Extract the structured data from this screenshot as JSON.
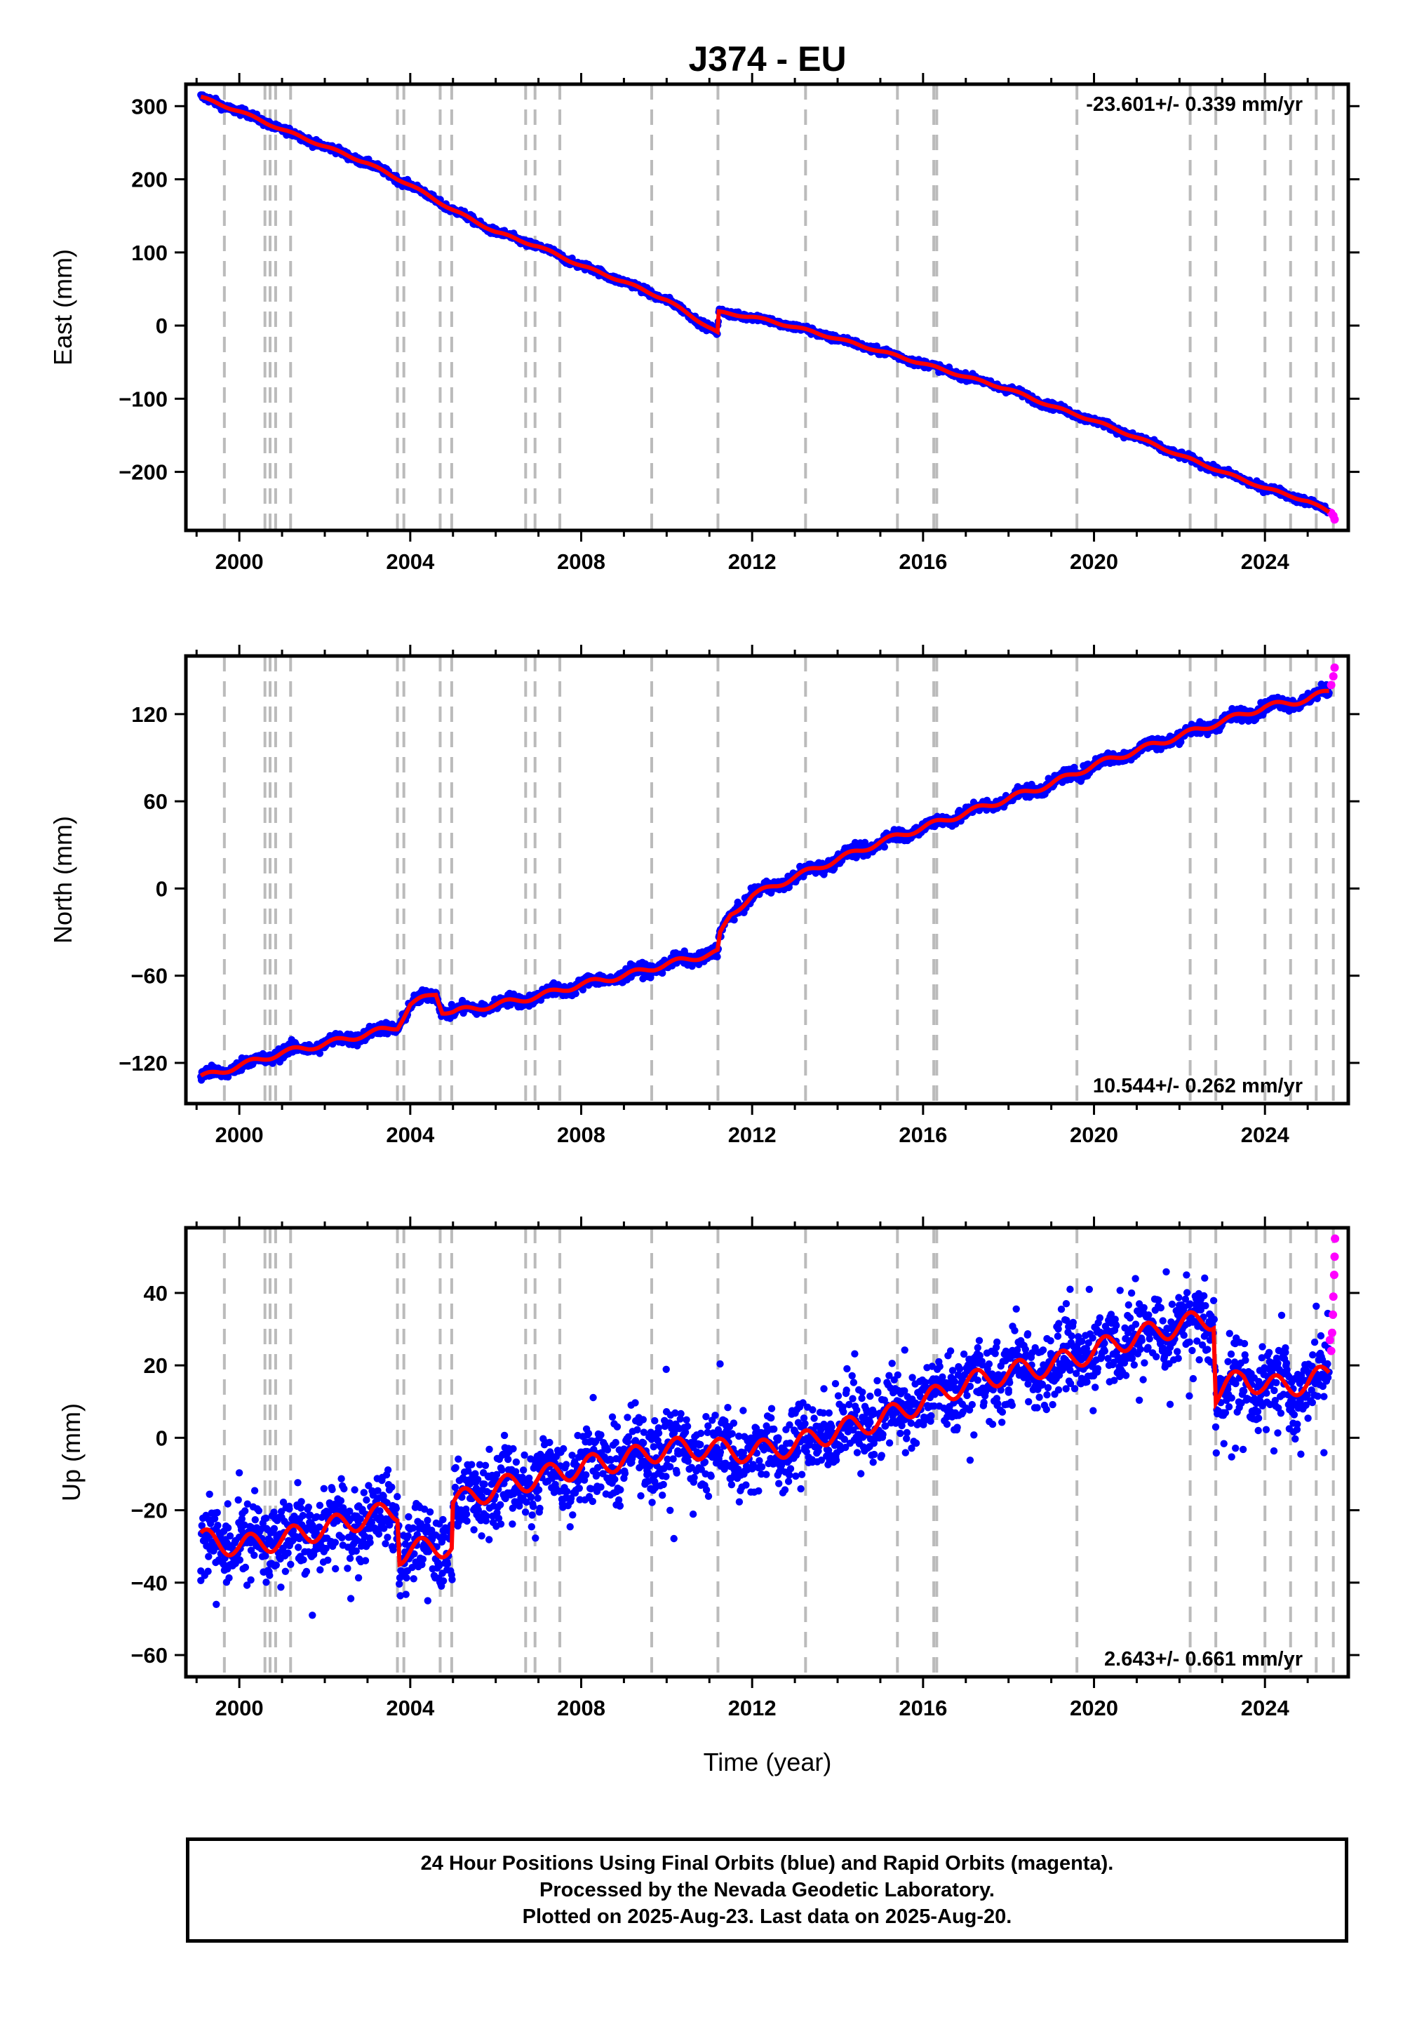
{
  "figure": {
    "title": "J374 - EU",
    "xlabel": "Time (year)",
    "x_ticks": [
      "2000",
      "2004",
      "2008",
      "2012",
      "2016",
      "2020",
      "2024"
    ],
    "event_lines": [
      1999.65,
      2000.6,
      2000.72,
      2000.85,
      2001.2,
      2003.7,
      2003.85,
      2004.7,
      2004.97,
      2006.7,
      2006.92,
      2007.5,
      2009.65,
      2011.2,
      2013.25,
      2015.4,
      2016.25,
      2016.32,
      2019.6,
      2022.25,
      2022.85,
      2024.0,
      2024.6,
      2025.2,
      2025.6
    ]
  },
  "colors": {
    "final_orbits": "#0000ff",
    "rapid_orbits": "#ff00ff",
    "model_fit": "#ff0000",
    "event_line": "#bbbbbb"
  },
  "chart_data": [
    {
      "type": "scatter",
      "panel": "east",
      "ylabel": "East (mm)",
      "rate_text": "-23.601+/- 0.339 mm/yr",
      "xlim": [
        1998.75,
        2025.95
      ],
      "ylim": [
        -280,
        330
      ],
      "y_ticks": [
        "300",
        "200",
        "100",
        "0",
        "−100",
        "−200"
      ],
      "y_tick_values": [
        300,
        200,
        100,
        0,
        -100,
        -200
      ],
      "series": [
        {
          "name": "Final Orbits",
          "x": [
            1999.1,
            2000.0,
            2001.0,
            2002.0,
            2003.0,
            2004.0,
            2005.0,
            2006.0,
            2007.0,
            2008.0,
            2009.0,
            2010.0,
            2011.19,
            2011.22,
            2012.0,
            2013.0,
            2014.0,
            2015.0,
            2016.0,
            2017.0,
            2018.0,
            2019.0,
            2020.0,
            2021.0,
            2022.0,
            2023.0,
            2024.0,
            2025.0,
            2025.5
          ],
          "y": [
            312,
            293,
            268,
            245,
            222,
            192,
            158,
            128,
            108,
            82,
            60,
            35,
            -10,
            18,
            12,
            -2,
            -18,
            -35,
            -52,
            -70,
            -87,
            -110,
            -130,
            -153,
            -177,
            -200,
            -222,
            -240,
            -255
          ]
        },
        {
          "name": "Rapid Orbits",
          "x": [
            2025.55,
            2025.6,
            2025.63
          ],
          "y": [
            -256,
            -260,
            -265
          ]
        }
      ]
    },
    {
      "type": "scatter",
      "panel": "north",
      "ylabel": "North (mm)",
      "rate_text": "10.544+/- 0.262 mm/yr",
      "xlim": [
        1998.75,
        2025.95
      ],
      "ylim": [
        -148,
        160
      ],
      "y_ticks": [
        "120",
        "60",
        "0",
        "−60",
        "−120"
      ],
      "y_tick_values": [
        120,
        60,
        0,
        -60,
        -120
      ],
      "series": [
        {
          "name": "Final Orbits",
          "x": [
            1999.1,
            2000.0,
            2001.0,
            2002.0,
            2003.0,
            2003.7,
            2004.0,
            2004.6,
            2004.75,
            2005.0,
            2006.0,
            2007.0,
            2008.0,
            2009.0,
            2010.0,
            2011.19,
            2011.25,
            2011.5,
            2012.0,
            2013.0,
            2014.0,
            2015.0,
            2016.0,
            2017.0,
            2018.0,
            2019.0,
            2020.0,
            2021.0,
            2022.0,
            2023.0,
            2024.0,
            2025.0,
            2025.5
          ],
          "y": [
            -130,
            -122,
            -113,
            -107,
            -100,
            -95,
            -80,
            -72,
            -84,
            -85,
            -80,
            -74,
            -66,
            -60,
            -52,
            -44,
            -32,
            -18,
            -5,
            8,
            20,
            32,
            42,
            52,
            62,
            72,
            85,
            95,
            105,
            115,
            125,
            130,
            136
          ]
        },
        {
          "name": "Rapid Orbits",
          "x": [
            2025.55,
            2025.6,
            2025.63
          ],
          "y": [
            140,
            146,
            152
          ]
        }
      ]
    },
    {
      "type": "scatter",
      "panel": "up",
      "ylabel": "Up (mm)",
      "rate_text": "2.643+/- 0.661 mm/yr",
      "xlim": [
        1998.75,
        2025.95
      ],
      "ylim": [
        -66,
        58
      ],
      "y_ticks": [
        "40",
        "20",
        "0",
        "−20",
        "−40",
        "−60"
      ],
      "y_tick_values": [
        40,
        20,
        0,
        -20,
        -40,
        -60
      ],
      "series": [
        {
          "name": "Final Orbits",
          "x": [
            1999.1,
            2000.0,
            2001.0,
            2002.0,
            2003.0,
            2003.7,
            2003.75,
            2004.5,
            2004.97,
            2005.0,
            2006.0,
            2007.0,
            2008.0,
            2009.0,
            2010.0,
            2011.0,
            2012.0,
            2013.0,
            2014.0,
            2015.0,
            2016.0,
            2017.0,
            2018.0,
            2019.0,
            2020.0,
            2021.0,
            2022.0,
            2022.8,
            2022.85,
            2023.5,
            2024.0,
            2025.0,
            2025.5
          ],
          "y": [
            -28,
            -30,
            -28,
            -25,
            -22,
            -20,
            -32,
            -30,
            -30,
            -18,
            -14,
            -11,
            -8,
            -6,
            -3,
            -3,
            -4,
            -2,
            2,
            5,
            10,
            15,
            18,
            20,
            24,
            28,
            31,
            33,
            12,
            17,
            14,
            15,
            18
          ]
        },
        {
          "name": "Rapid Orbits",
          "x": [
            2025.52,
            2025.55,
            2025.57,
            2025.59,
            2025.6,
            2025.62,
            2025.63,
            2025.64
          ],
          "y": [
            27,
            24,
            29,
            34,
            39,
            45,
            50,
            55
          ]
        }
      ]
    }
  ],
  "footer": {
    "line1": "24 Hour Positions Using Final Orbits (blue) and Rapid Orbits (magenta).",
    "line2": "Processed by the Nevada Geodetic Laboratory.",
    "line3": "Plotted on 2025-Aug-23. Last data on 2025-Aug-20."
  }
}
